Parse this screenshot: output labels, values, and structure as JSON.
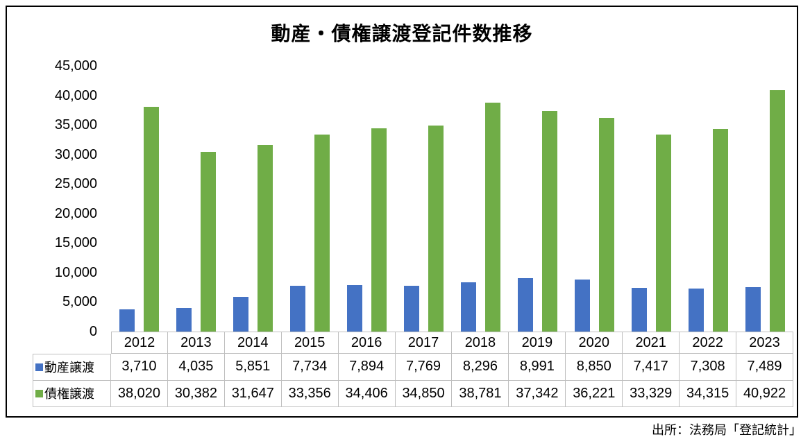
{
  "chart": {
    "title": "動産・債権譲渡登記件数推移",
    "source_note": "出所：法務局「登記統計」"
  },
  "chart_data": {
    "type": "bar",
    "title": "動産・債権譲渡登記件数推移",
    "categories": [
      "2012",
      "2013",
      "2014",
      "2015",
      "2016",
      "2017",
      "2018",
      "2019",
      "2020",
      "2021",
      "2022",
      "2023"
    ],
    "series": [
      {
        "name": "動産譲渡",
        "color": "#4472C4",
        "values": [
          3710,
          4035,
          5851,
          7734,
          7894,
          7769,
          8296,
          8991,
          8850,
          7417,
          7308,
          7489
        ]
      },
      {
        "name": "債権譲渡",
        "color": "#70AD47",
        "values": [
          38020,
          30382,
          31647,
          33356,
          34406,
          34850,
          38781,
          37342,
          36221,
          33329,
          34315,
          40922
        ]
      }
    ],
    "xlabel": "",
    "ylabel": "",
    "ylim": [
      0,
      45000
    ],
    "ytick_step": 5000,
    "yticks": [
      0,
      5000,
      10000,
      15000,
      20000,
      25000,
      30000,
      35000,
      40000,
      45000
    ],
    "grid": false,
    "legend_position": "data-table-left",
    "data_table_shown": true,
    "colors": {
      "bar_blue": "#4472C4",
      "bar_green": "#70AD47",
      "table_border": "#BFBFBF",
      "frame_border": "#000000",
      "background": "#FFFFFF"
    }
  }
}
